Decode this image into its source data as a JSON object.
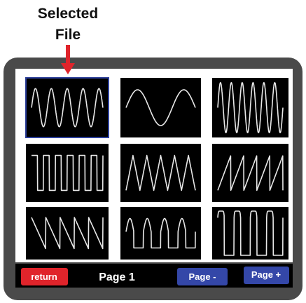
{
  "header": {
    "title_lines": [
      "Selected",
      "File"
    ]
  },
  "footer": {
    "return": "return",
    "page": "Page 1",
    "prev": "Page -",
    "next": "Page +"
  }
}
